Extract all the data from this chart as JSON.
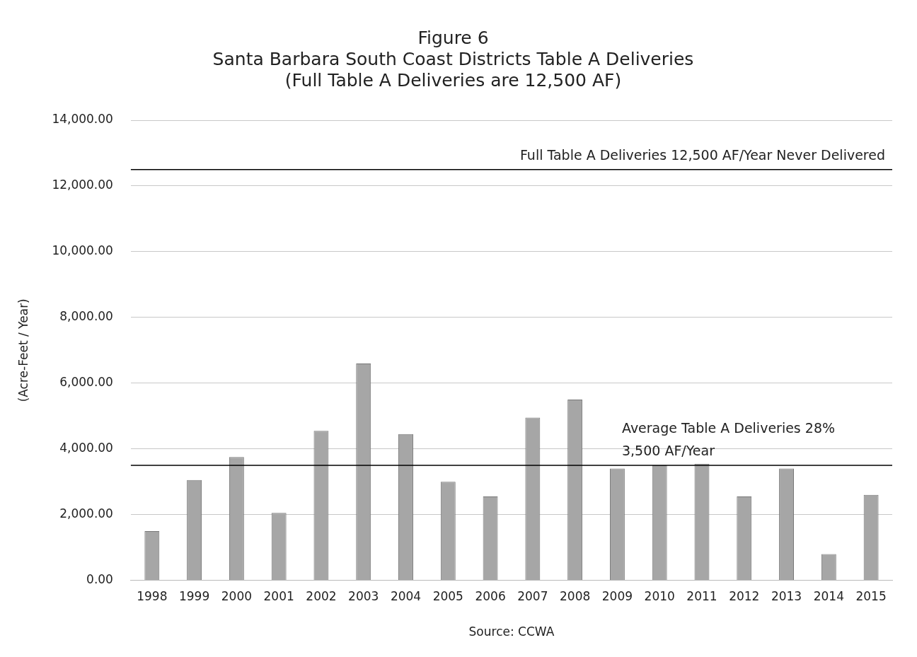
{
  "chart_data": {
    "type": "bar",
    "title": [
      "Figure 6",
      "Santa Barbara South Coast Districts Table A Deliveries",
      "(Full Table A Deliveries are 12,500 AF)"
    ],
    "ylabel": "(Acre-Feet / Year)",
    "categories": [
      "1998",
      "1999",
      "2000",
      "2001",
      "2002",
      "2003",
      "2004",
      "2005",
      "2006",
      "2007",
      "2008",
      "2009",
      "2010",
      "2011",
      "2012",
      "2013",
      "2014",
      "2015"
    ],
    "values": [
      1500,
      3050,
      3750,
      2050,
      4550,
      6600,
      4450,
      3000,
      2550,
      4950,
      5500,
      3400,
      3500,
      3550,
      2550,
      3400,
      800,
      2600
    ],
    "color": "#a6a6a6",
    "ylim": [
      0,
      14000
    ],
    "yticks": [
      {
        "value": 0,
        "label": "0.00"
      },
      {
        "value": 2000,
        "label": "2,000.00"
      },
      {
        "value": 4000,
        "label": "4,000.00"
      },
      {
        "value": 6000,
        "label": "6,000.00"
      },
      {
        "value": 8000,
        "label": "8,000.00"
      },
      {
        "value": 10000,
        "label": "10,000.00"
      },
      {
        "value": 12000,
        "label": "12,000.00"
      },
      {
        "value": 14000,
        "label": "14,000.00"
      }
    ],
    "grid": "y",
    "ref_lines": [
      {
        "axis": "y",
        "value": 12500,
        "label": "Full Table A Deliveries 12,500 AF/Year Never Delivered",
        "color": "#000000"
      },
      {
        "axis": "y",
        "value": 3500,
        "label": [
          "Average Table A Deliveries 28%",
          "3,500 AF/Year"
        ],
        "color": "#000000"
      }
    ],
    "annotations": [
      "Source: CCWA"
    ]
  }
}
